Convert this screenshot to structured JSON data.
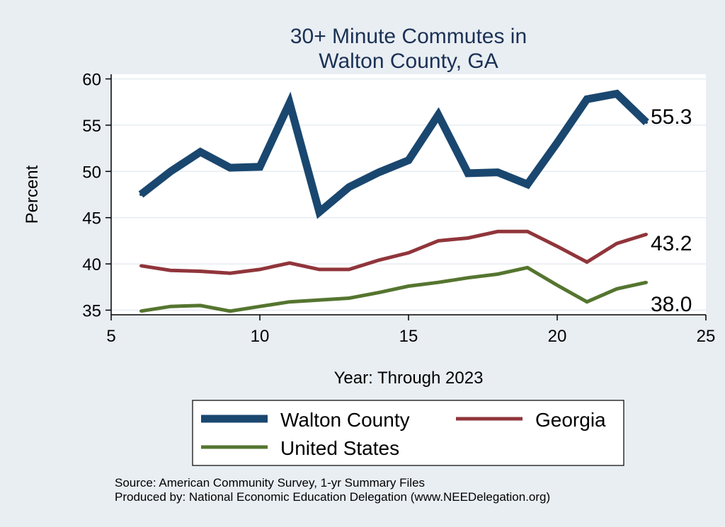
{
  "chart_data": {
    "type": "line",
    "title_lines": [
      "30+ Minute Commutes in",
      "Walton County, GA"
    ],
    "xlabel": "Year: Through 2023",
    "ylabel": "Percent",
    "xlim": [
      5,
      25
    ],
    "ylim": [
      34.5,
      60.5
    ],
    "xticks": [
      5,
      10,
      15,
      20,
      25
    ],
    "yticks": [
      35,
      40,
      45,
      50,
      55,
      60
    ],
    "grid": true,
    "legend_position": "bottom",
    "series": [
      {
        "name": "Walton County",
        "color": "#1a476f",
        "x": [
          6,
          7,
          8,
          9,
          10,
          11,
          12,
          13,
          14,
          15,
          16,
          17,
          18,
          19,
          20,
          21,
          22,
          23
        ],
        "y": [
          47.5,
          50.0,
          52.1,
          50.4,
          50.5,
          57.4,
          45.6,
          48.3,
          49.9,
          51.2,
          56.1,
          49.8,
          49.9,
          48.6,
          53.1,
          57.8,
          58.4,
          55.3
        ],
        "end_label": "55.3"
      },
      {
        "name": "Georgia",
        "color": "#90353b",
        "x": [
          6,
          7,
          8,
          9,
          10,
          11,
          12,
          13,
          14,
          15,
          16,
          17,
          18,
          19,
          20,
          21,
          22,
          23
        ],
        "y": [
          39.8,
          39.3,
          39.2,
          39.0,
          39.4,
          40.1,
          39.4,
          39.4,
          40.4,
          41.2,
          42.5,
          42.8,
          43.5,
          43.5,
          41.9,
          40.2,
          42.2,
          43.2
        ],
        "end_label": "43.2"
      },
      {
        "name": "United States",
        "color": "#55752f",
        "x": [
          6,
          7,
          8,
          9,
          10,
          11,
          12,
          13,
          14,
          15,
          16,
          17,
          18,
          19,
          20,
          21,
          22,
          23
        ],
        "y": [
          34.9,
          35.4,
          35.5,
          34.9,
          35.4,
          35.9,
          36.1,
          36.3,
          36.9,
          37.6,
          38.0,
          38.5,
          38.9,
          39.6,
          37.7,
          35.9,
          37.3,
          38.0
        ],
        "end_label": "38.0"
      }
    ],
    "notes": [
      "Source: American Community Survey, 1-yr Summary Files",
      "Produced by: National Economic Education Delegation (www.NEEDelegation.org)"
    ]
  }
}
